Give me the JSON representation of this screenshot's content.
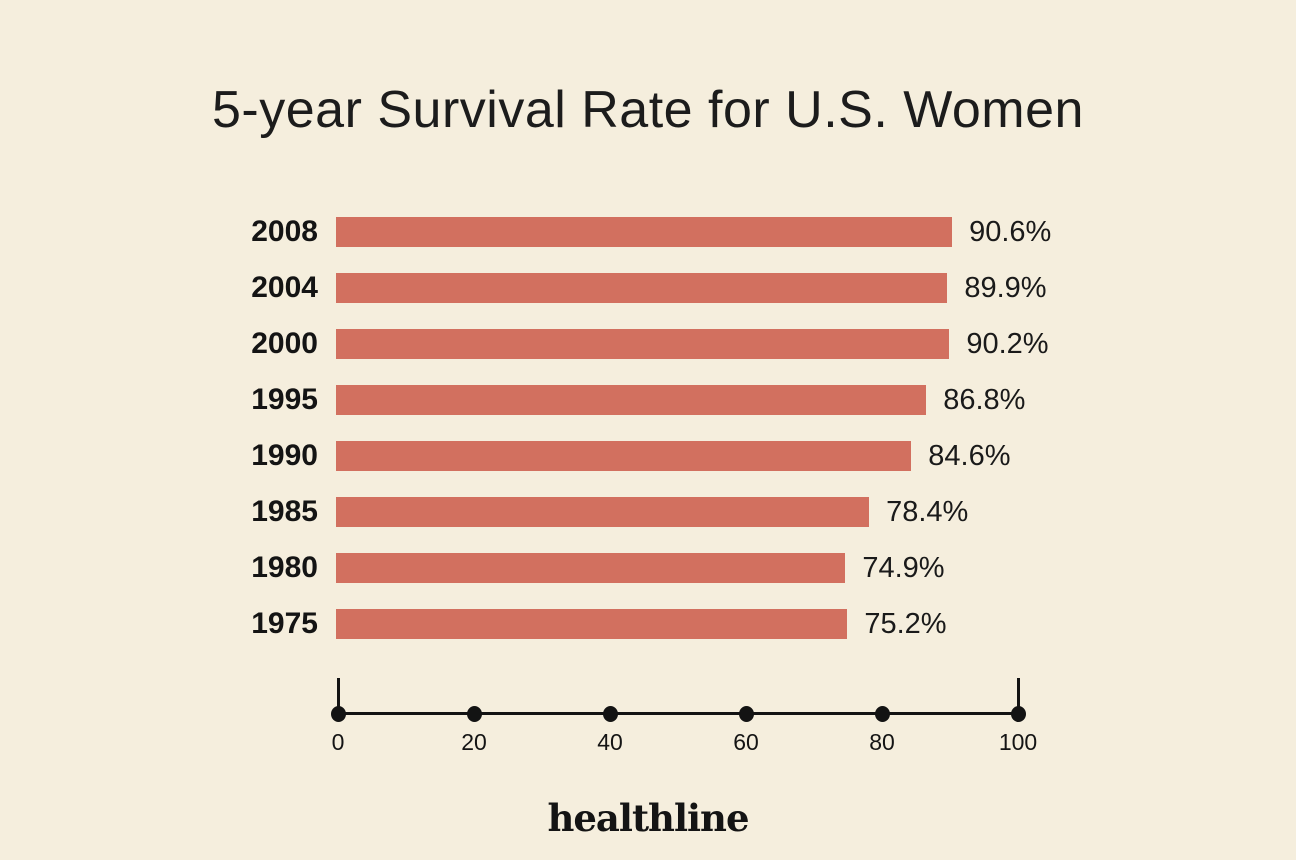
{
  "title": "5-year Survival Rate for U.S. Women",
  "brand": {
    "logo_text": "healthline"
  },
  "colors": {
    "background": "#f5eedd",
    "bar": "#d2705f",
    "text": "#191919",
    "axis": "#131313"
  },
  "chart_data": {
    "type": "bar",
    "orientation": "horizontal",
    "title": "5-year Survival Rate for U.S. Women",
    "xlabel": "",
    "ylabel": "",
    "categories": [
      "2008",
      "2004",
      "2000",
      "1995",
      "1990",
      "1985",
      "1980",
      "1975"
    ],
    "values": [
      90.6,
      89.9,
      90.2,
      86.8,
      84.6,
      78.4,
      74.9,
      75.2
    ],
    "labels": [
      "90.6%",
      "89.9%",
      "90.2%",
      "86.8%",
      "84.6%",
      "78.4%",
      "74.9%",
      "75.2%"
    ],
    "xlim": [
      0,
      100
    ],
    "x_ticks": [
      "0",
      "20",
      "40",
      "60",
      "80",
      "100"
    ],
    "grid": false,
    "legend": false,
    "bar_color": "#d2705f",
    "background_color": "#f5eedd"
  }
}
